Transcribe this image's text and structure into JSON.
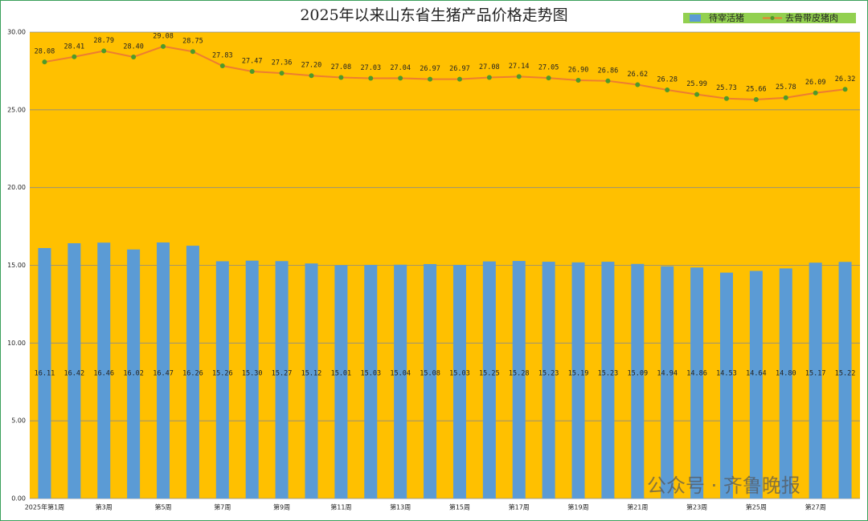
{
  "chart_data": {
    "type": "bar",
    "title": "2025年以来山东省生猪产品价格走势图",
    "watermark": "公众号 · 齐鲁晚报",
    "categories": [
      "2025年第1周",
      null,
      "第3周",
      null,
      "第5周",
      null,
      "第7周",
      null,
      "第9周",
      null,
      "第11周",
      null,
      "第13周",
      null,
      "第15周",
      null,
      "第17周",
      null,
      "第19周",
      null,
      "第21周",
      null,
      "第23周",
      null,
      "第25周",
      null,
      "第27周",
      null
    ],
    "series": [
      {
        "name": "待宰活猪",
        "type": "bar",
        "color": "#5b9bd5",
        "values": [
          16.11,
          16.42,
          16.46,
          16.02,
          16.47,
          16.26,
          15.26,
          15.3,
          15.27,
          15.12,
          15.01,
          15.03,
          15.04,
          15.08,
          15.03,
          15.25,
          15.28,
          15.23,
          15.19,
          15.23,
          15.09,
          14.94,
          14.86,
          14.53,
          14.64,
          14.8,
          15.17,
          15.22
        ],
        "value_labels": [
          "16.11",
          "16.42",
          "16.46",
          "16.02",
          "16.47",
          "16.26",
          "15.26",
          "15.30",
          "15.27",
          "15.12",
          "15.01",
          "15.03",
          "15.04",
          "15.08",
          "15.03",
          "15.25",
          "15.28",
          "15.23",
          "15.19",
          "15.23",
          "15.09",
          "14.94",
          "14.86",
          "14.53",
          "14.64",
          "14.80",
          "15.17",
          "15.22"
        ]
      },
      {
        "name": "去骨带皮猪肉",
        "type": "line",
        "color": "#ed7d31",
        "marker_color": "#4e9a2a",
        "values": [
          28.08,
          28.41,
          28.79,
          28.4,
          29.08,
          28.75,
          27.83,
          27.47,
          27.36,
          27.2,
          27.08,
          27.03,
          27.04,
          26.97,
          26.97,
          27.08,
          27.14,
          27.05,
          26.9,
          26.86,
          26.62,
          26.28,
          25.99,
          25.73,
          25.66,
          25.78,
          26.09,
          26.32
        ],
        "value_labels": [
          "28.08",
          "28.41",
          "28.79",
          "28.40",
          "29.08",
          "28.75",
          "27.83",
          "27.47",
          "27.36",
          "27.20",
          "27.08",
          "27.03",
          "27.04",
          "26.97",
          "26.97",
          "27.08",
          "27.14",
          "27.05",
          "26.90",
          "26.86",
          "26.62",
          "26.28",
          "25.99",
          "25.73",
          "25.66",
          "25.78",
          "26.09",
          "26.32"
        ]
      }
    ],
    "ylim": [
      0,
      30
    ],
    "yticks": [
      {
        "value": 0,
        "label": "0.00"
      },
      {
        "value": 5,
        "label": "5.00"
      },
      {
        "value": 10,
        "label": "10.00"
      },
      {
        "value": 15,
        "label": "15.00"
      },
      {
        "value": 20,
        "label": "20.00"
      },
      {
        "value": 25,
        "label": "25.00"
      },
      {
        "value": 30,
        "label": "30.00"
      }
    ],
    "grid": true,
    "legend": "top-right",
    "background": "#ffc000"
  }
}
